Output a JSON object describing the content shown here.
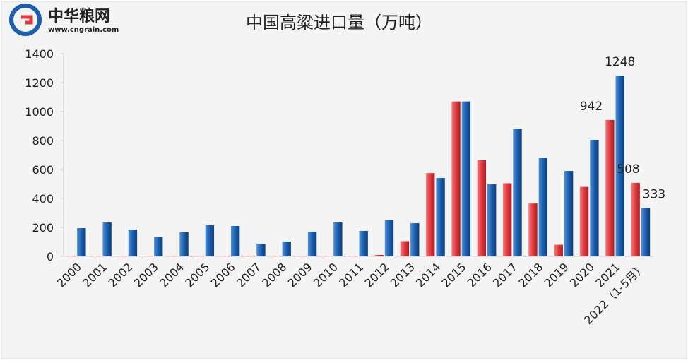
{
  "logo": {
    "name": "中华粮网",
    "url": "www.cngrain.com"
  },
  "chart_data": {
    "type": "bar",
    "title": "中国高粱进口量（万吨）",
    "categories": [
      "2000",
      "2001",
      "2002",
      "2003",
      "2004",
      "2005",
      "2006",
      "2007",
      "2008",
      "2009",
      "2010",
      "2011",
      "2012",
      "2013",
      "2014",
      "2015",
      "2016",
      "2017",
      "2018",
      "2019",
      "2020",
      "2021",
      "2022（1-5月）"
    ],
    "series": [
      {
        "color": "#e0393e",
        "values": [
          4,
          4,
          4,
          4,
          4,
          4,
          4,
          4,
          4,
          4,
          4,
          4,
          10,
          105,
          575,
          1070,
          665,
          505,
          365,
          80,
          480,
          942,
          508
        ]
      },
      {
        "color": "#1b5fae",
        "values": [
          195,
          234,
          185,
          132,
          166,
          215,
          210,
          88,
          102,
          171,
          234,
          176,
          249,
          229,
          541,
          1070,
          498,
          881,
          678,
          590,
          805,
          1248,
          333
        ]
      }
    ],
    "labeled_categories": [
      "2021",
      "2022（1-5月）"
    ],
    "ylim": [
      0,
      1400
    ],
    "yticks": [
      0,
      200,
      400,
      600,
      800,
      1000,
      1200,
      1400
    ],
    "grid": false
  }
}
